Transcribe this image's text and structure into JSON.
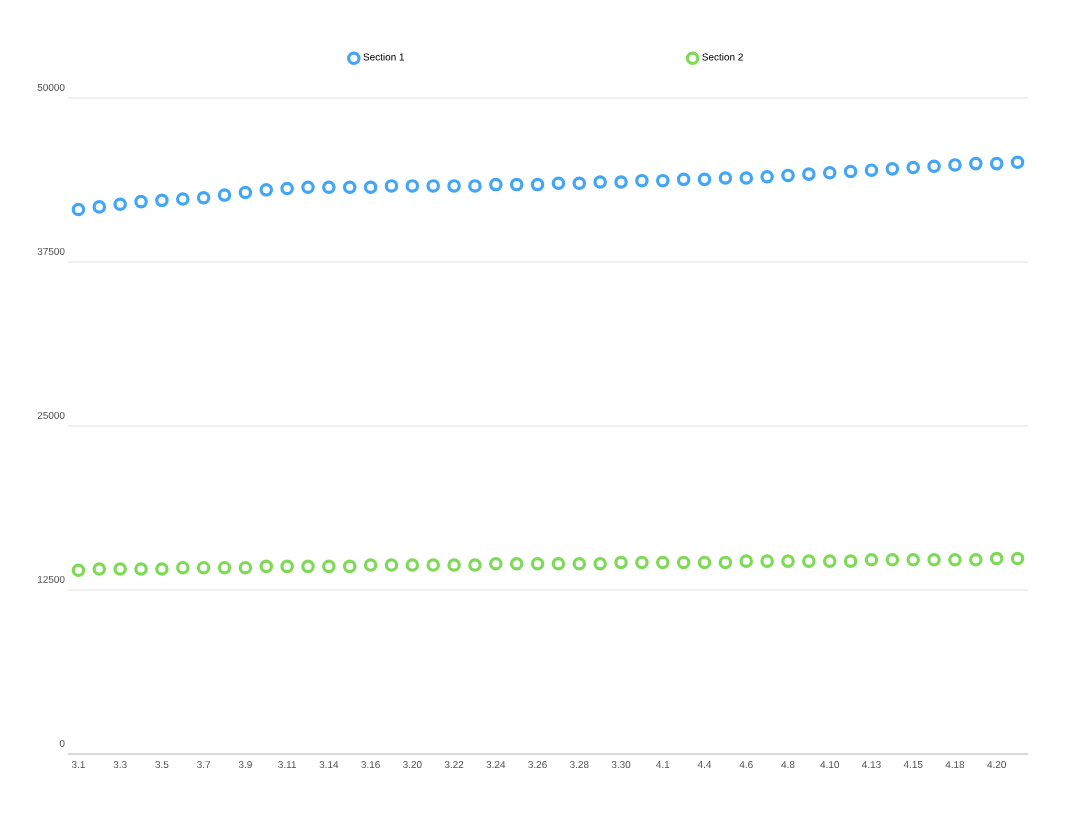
{
  "chart_data": {
    "type": "scatter",
    "marker": "circle",
    "grid": "y",
    "legend": "top",
    "categories": [
      "3.1",
      null,
      "3.3",
      null,
      "3.5",
      null,
      "3.7",
      null,
      "3.9",
      null,
      "3.11",
      null,
      "3.14",
      null,
      "3.16",
      null,
      "3.20",
      null,
      "3.22",
      null,
      "3.24",
      null,
      "3.26",
      null,
      "3.28",
      null,
      "3.30",
      null,
      "4.1",
      null,
      "4.4",
      null,
      "4.6",
      null,
      "4.8",
      null,
      "4.10",
      null,
      "4.13",
      null,
      "4.15",
      null,
      "4.18",
      null,
      "4.20",
      null
    ],
    "ylim": [
      0,
      50000
    ],
    "yticks": [
      0,
      12500,
      25000,
      37500,
      50000
    ],
    "series": [
      {
        "name": "Section 1",
        "color": "#42a5f5",
        "values": [
          41500,
          41700,
          41900,
          42100,
          42200,
          42300,
          42400,
          42600,
          42800,
          43000,
          43100,
          43200,
          43200,
          43200,
          43200,
          43300,
          43300,
          43300,
          43300,
          43300,
          43400,
          43400,
          43400,
          43500,
          43500,
          43600,
          43600,
          43700,
          43700,
          43800,
          43800,
          43900,
          43900,
          44000,
          44100,
          44200,
          44300,
          44400,
          44500,
          44600,
          44700,
          44800,
          44900,
          45000,
          45000,
          45100
        ]
      },
      {
        "name": "Section 2",
        "color": "#7ed957",
        "values": [
          14000,
          14100,
          14100,
          14100,
          14100,
          14200,
          14200,
          14200,
          14200,
          14300,
          14300,
          14300,
          14300,
          14300,
          14400,
          14400,
          14400,
          14400,
          14400,
          14400,
          14500,
          14500,
          14500,
          14500,
          14500,
          14500,
          14600,
          14600,
          14600,
          14600,
          14600,
          14600,
          14700,
          14700,
          14700,
          14700,
          14700,
          14700,
          14800,
          14800,
          14800,
          14800,
          14800,
          14800,
          14900,
          14900
        ]
      }
    ]
  }
}
